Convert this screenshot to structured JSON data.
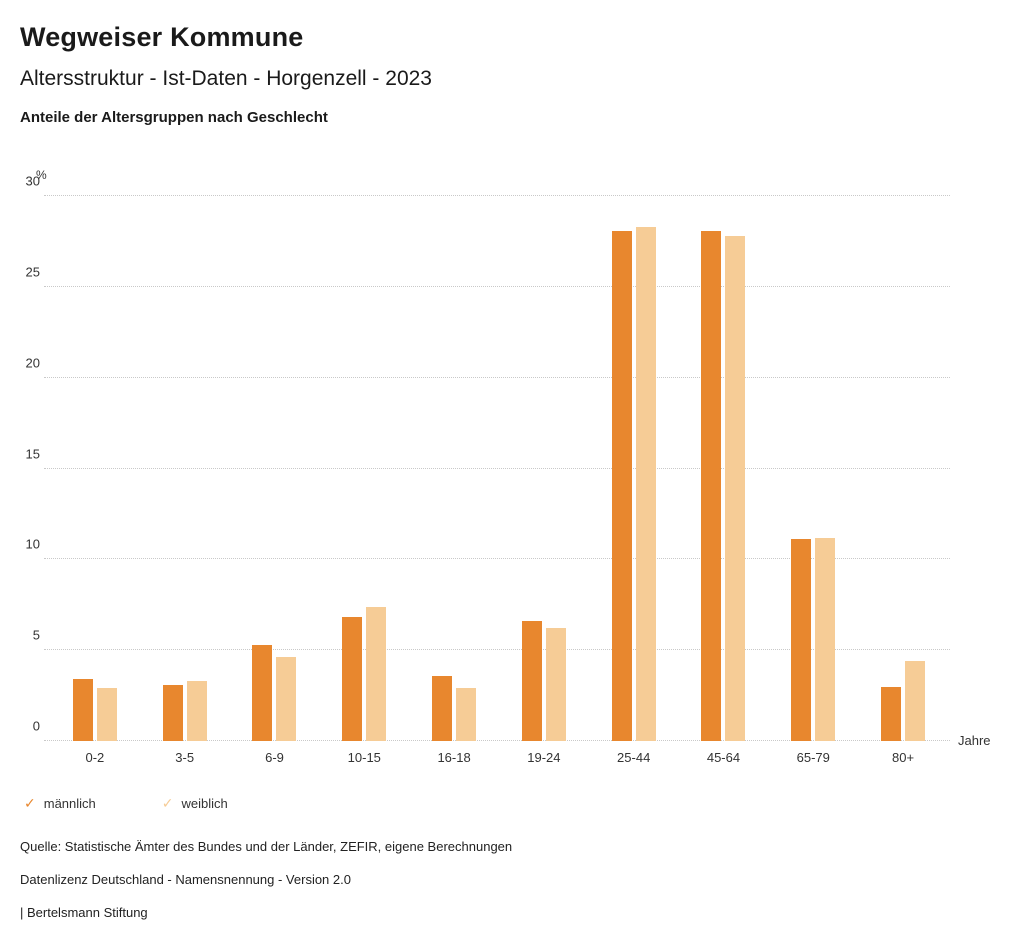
{
  "header": {
    "title": "Wegweiser Kommune",
    "subtitle": "Altersstruktur - Ist-Daten - Horgenzell - 2023",
    "chart_title": "Anteile der Altersgruppen nach Geschlecht"
  },
  "chart_data": {
    "type": "bar",
    "categories": [
      "0-2",
      "3-5",
      "6-9",
      "10-15",
      "16-18",
      "19-24",
      "25-44",
      "45-64",
      "65-79",
      "80+"
    ],
    "series": [
      {
        "name": "männlich",
        "color": "#e8872e",
        "values": [
          3.4,
          3.1,
          5.3,
          6.8,
          3.6,
          6.6,
          28.1,
          28.1,
          11.1,
          3.0
        ]
      },
      {
        "name": "weiblich",
        "color": "#f6cc96",
        "values": [
          2.9,
          3.3,
          4.6,
          7.4,
          2.9,
          6.2,
          28.3,
          27.8,
          11.2,
          4.4
        ]
      }
    ],
    "title": "Anteile der Altersgruppen nach Geschlecht",
    "xlabel": "Jahre",
    "ylabel": "%",
    "ylim": [
      0,
      30
    ],
    "yticks": [
      0,
      5,
      10,
      15,
      20,
      25,
      30
    ],
    "grid": true,
    "legend_position": "bottom"
  },
  "legend": {
    "check_icon": "✓"
  },
  "footer": {
    "lines": [
      "Quelle: Statistische Ämter des Bundes und der Länder, ZEFIR, eigene Berechnungen",
      "Datenlizenz Deutschland - Namensnennung - Version 2.0",
      "| Bertelsmann Stiftung"
    ]
  }
}
